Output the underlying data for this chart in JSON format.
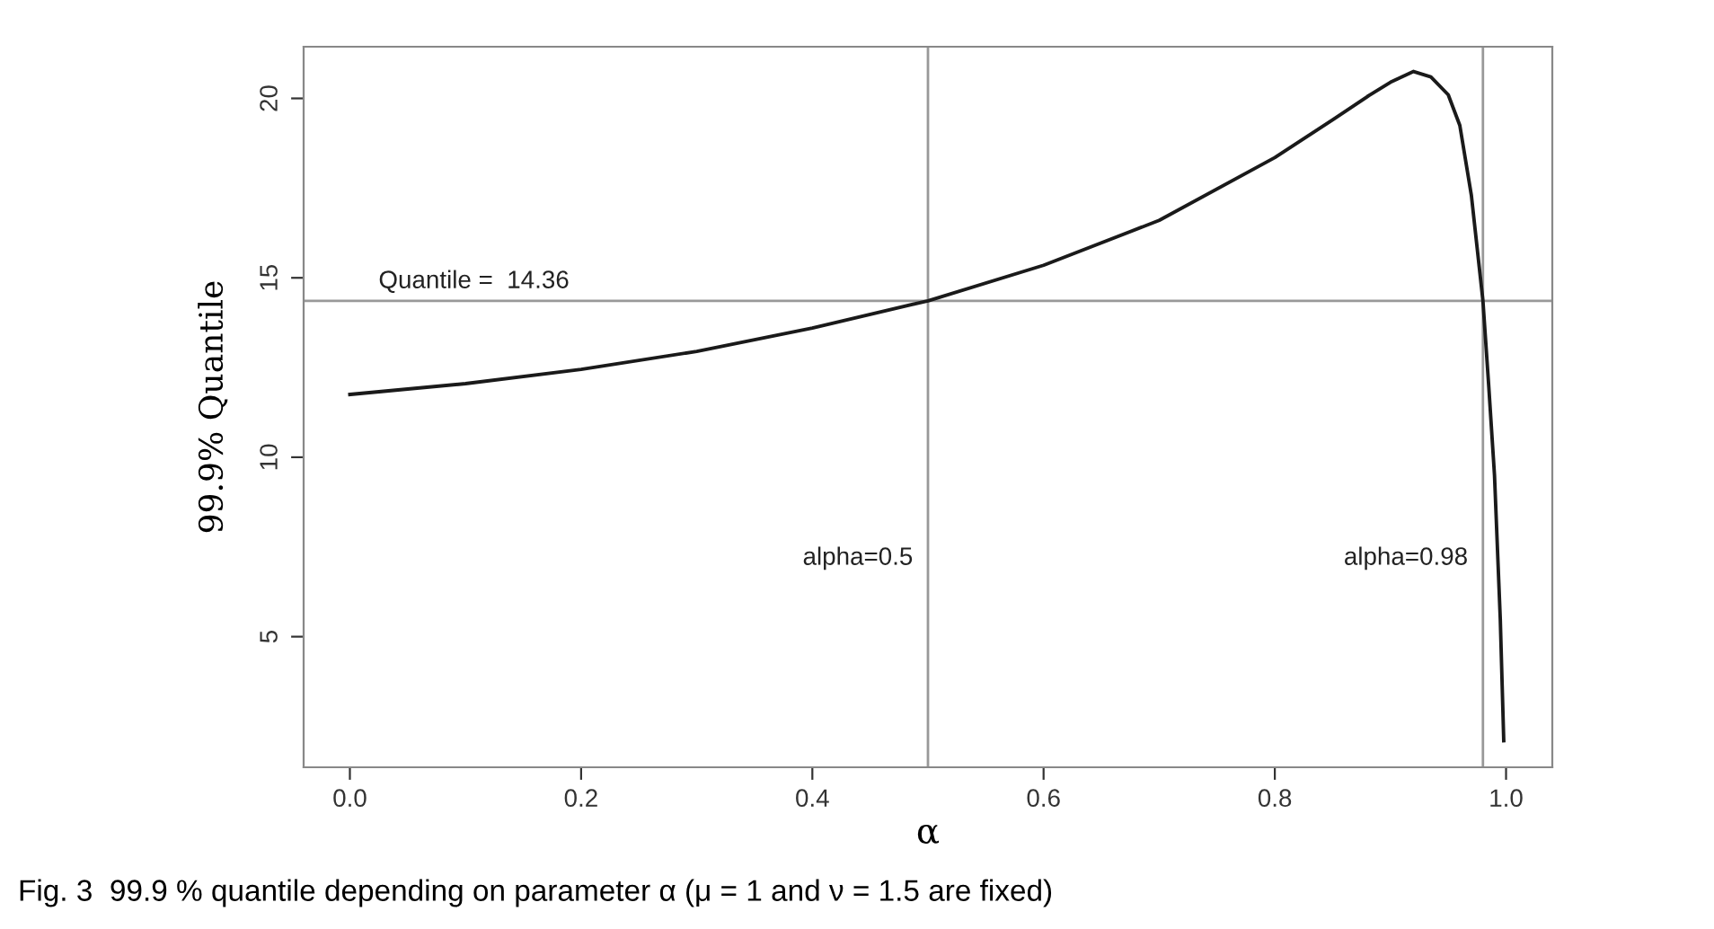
{
  "chart_data": {
    "type": "line",
    "xlabel": "α",
    "ylabel": "99.9% Quantile",
    "x": [
      0.0,
      0.05,
      0.1,
      0.2,
      0.3,
      0.4,
      0.5,
      0.6,
      0.7,
      0.8,
      0.85,
      0.88,
      0.9,
      0.92,
      0.935,
      0.95,
      0.96,
      0.97,
      0.98,
      0.985,
      0.99,
      0.995,
      0.998
    ],
    "series": [
      {
        "color": "#1a1a1a",
        "values": [
          11.75,
          11.9,
          12.05,
          12.45,
          12.95,
          13.6,
          14.36,
          15.35,
          16.6,
          18.35,
          19.4,
          20.05,
          20.45,
          20.75,
          20.6,
          20.1,
          19.25,
          17.3,
          14.36,
          12.0,
          9.5,
          5.5,
          2.1
        ]
      }
    ],
    "xlim": [
      -0.04,
      1.04
    ],
    "ylim": [
      1.36,
      21.44
    ],
    "xticks": [
      {
        "value": 0,
        "label": "0.0"
      },
      0.2,
      0.4,
      0.6,
      0.8,
      {
        "value": 1,
        "label": "1.0"
      }
    ],
    "yticks": [
      5,
      10,
      15,
      20
    ],
    "ref_lines": [
      {
        "axis": "y",
        "value": 14.36,
        "label": "Quantile =  14.36",
        "color": "#999999"
      },
      {
        "axis": "x",
        "value": 0.5,
        "label": "alpha=0.5",
        "color": "#999999"
      },
      {
        "axis": "x",
        "value": 0.98,
        "label": "alpha=0.98",
        "color": "#999999"
      }
    ],
    "annotations": [
      "Fig. 3  99.9 % quantile depending on parameter α (μ = 1 and ν = 1.5 are fixed)"
    ],
    "grid": false,
    "legend": false,
    "marker": "none",
    "line_style": "solid"
  }
}
